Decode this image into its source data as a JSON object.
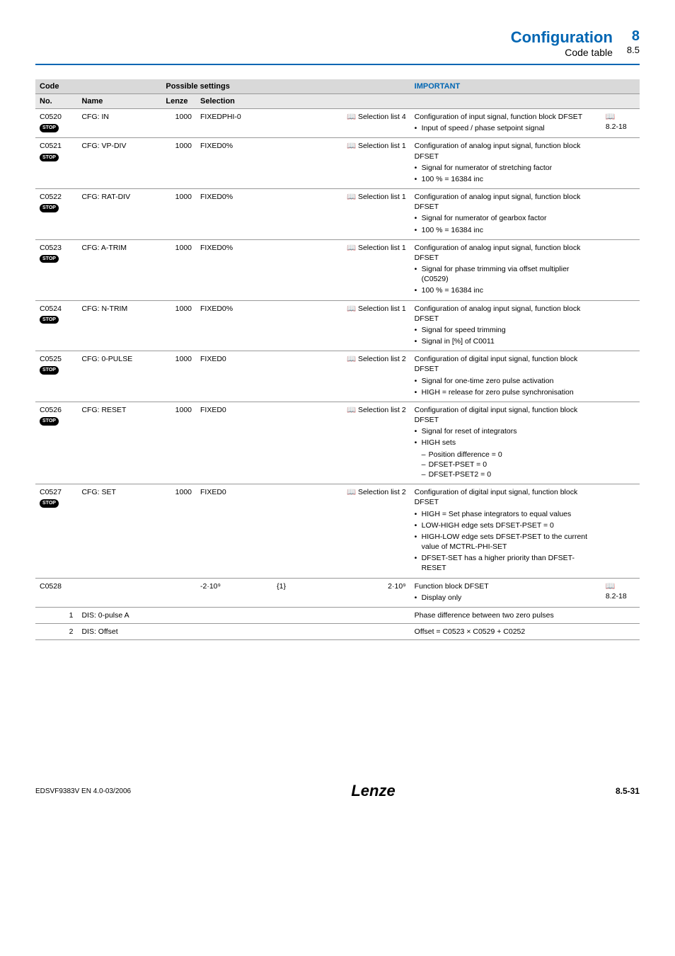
{
  "header": {
    "title": "Configuration",
    "subtitle": "Code table",
    "chapter": "8",
    "section": "8.5"
  },
  "table": {
    "head": {
      "code": "Code",
      "possible": "Possible settings",
      "important": "IMPORTANT",
      "no": "No.",
      "name": "Name",
      "lenze": "Lenze",
      "selection": "Selection"
    },
    "rows": [
      {
        "no": "C0520",
        "stop": true,
        "name": "CFG: IN",
        "lenze": "1000",
        "sel": "FIXEDPHI-0",
        "right": "📖 Selection list 4",
        "imp_lead": "Configuration of input signal, function block DFSET",
        "imp_items": [
          "Input of speed / phase setpoint signal"
        ],
        "ref": "8.2-18",
        "ref_icon": true
      },
      {
        "no": "C0521",
        "stop": true,
        "name": "CFG: VP-DIV",
        "lenze": "1000",
        "sel": "FIXED0%",
        "right": "📖 Selection list 1",
        "imp_lead": "Configuration of analog input signal, function block DFSET",
        "imp_items": [
          "Signal for numerator of stretching factor",
          "100 % = 16384 inc"
        ]
      },
      {
        "no": "C0522",
        "stop": true,
        "name": "CFG: RAT-DIV",
        "lenze": "1000",
        "sel": "FIXED0%",
        "right": "📖 Selection list 1",
        "imp_lead": "Configuration of analog input signal, function block DFSET",
        "imp_items": [
          "Signal for numerator of gearbox factor",
          "100 % = 16384 inc"
        ]
      },
      {
        "no": "C0523",
        "stop": true,
        "name": "CFG: A-TRIM",
        "lenze": "1000",
        "sel": "FIXED0%",
        "right": "📖 Selection list 1",
        "imp_lead": "Configuration of analog input signal, function block DFSET",
        "imp_items": [
          "Signal for phase trimming via offset multiplier (C0529)",
          "100 % = 16384 inc"
        ]
      },
      {
        "no": "C0524",
        "stop": true,
        "name": "CFG: N-TRIM",
        "lenze": "1000",
        "sel": "FIXED0%",
        "right": "📖 Selection list 1",
        "imp_lead": "Configuration of analog input signal, function block DFSET",
        "imp_items": [
          "Signal for speed trimming",
          "Signal in [%] of C0011"
        ]
      },
      {
        "no": "C0525",
        "stop": true,
        "name": "CFG: 0-PULSE",
        "lenze": "1000",
        "sel": "FIXED0",
        "right": "📖 Selection list 2",
        "imp_lead": "Configuration of digital input signal, function block DFSET",
        "imp_items": [
          "Signal for one-time zero pulse activation",
          "HIGH = release for zero pulse synchronisation"
        ]
      },
      {
        "no": "C0526",
        "stop": true,
        "name": "CFG: RESET",
        "lenze": "1000",
        "sel": "FIXED0",
        "right": "📖 Selection list 2",
        "imp_lead": "Configuration of digital input signal, function block DFSET",
        "imp_items": [
          "Signal for reset of integrators"
        ],
        "imp_nested_label": "HIGH sets",
        "imp_nested": [
          "Position difference = 0",
          "DFSET-PSET = 0",
          "DFSET-PSET2 = 0"
        ]
      },
      {
        "no": "C0527",
        "stop": true,
        "name": "CFG: SET",
        "lenze": "1000",
        "sel": "FIXED0",
        "right": "📖 Selection list 2",
        "imp_lead": "Configuration of digital input signal, function block DFSET",
        "imp_items": [
          "HIGH = Set phase integrators to equal values",
          "LOW-HIGH edge sets DFSET-PSET = 0",
          "HIGH-LOW edge sets DFSET-PSET to the current value of MCTRL-PHI-SET",
          "DFSET-SET has a higher priority than DFSET-RESET"
        ]
      },
      {
        "no": "C0528",
        "stop": false,
        "name": "",
        "lenze": "",
        "sel": "-2·10⁹",
        "mid": "{1}",
        "right": "2·10⁹",
        "imp_lead": "Function block DFSET",
        "imp_items": [
          "Display only"
        ],
        "ref": "8.2-18",
        "ref_icon": true
      },
      {
        "no": "1",
        "stop": false,
        "name": "DIS: 0-pulse A",
        "lenze": "",
        "sel": "",
        "right": "",
        "imp_lead": "Phase difference between two zero pulses",
        "no_align_right": true
      },
      {
        "no": "2",
        "stop": false,
        "name": "DIS: Offset",
        "lenze": "",
        "sel": "",
        "right": "",
        "imp_lead": "Offset = C0523 × C0529 + C0252",
        "no_align_right": true
      }
    ]
  },
  "footer": {
    "left": "EDSVF9383V  EN  4.0-03/2006",
    "logo": "Lenze",
    "page": "8.5-31"
  },
  "labels": {
    "stop": "STOP"
  }
}
